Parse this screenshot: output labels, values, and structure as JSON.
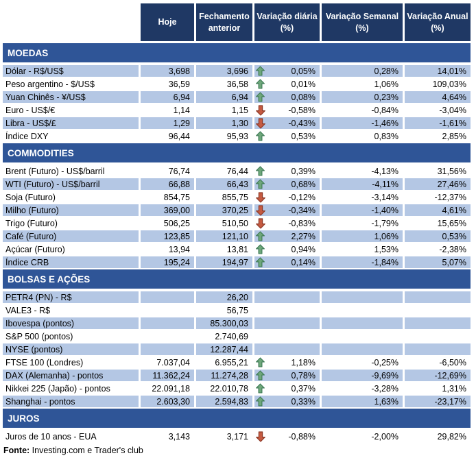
{
  "colors": {
    "header_bg": "#1F3864",
    "section_bg": "#2F5597",
    "row_shade": "#B4C7E4",
    "row_plain": "#FFFFFF",
    "up_arrow_fill": "#6FA77B",
    "up_arrow_border": "#3D7A55",
    "down_arrow_fill": "#C55A41",
    "down_arrow_border": "#8E3A28",
    "text": "#000000"
  },
  "chart_data": {
    "type": "table",
    "columns": [
      "",
      "Hoje",
      "Fechamento anterior",
      "Variação diária (%)",
      "Variação Semanal (%)",
      "Variação Anual (%)"
    ],
    "sections": [
      {
        "title": "MOEDAS",
        "rows": [
          {
            "label": "Dólar - R$/US$",
            "hoje": "3,698",
            "fechamento": "3,696",
            "trend": "up",
            "diaria": "0,05%",
            "semanal": "0,28%",
            "anual": "14,01%",
            "shaded": true
          },
          {
            "label": "Peso argentino - $/US$",
            "hoje": "36,59",
            "fechamento": "36,58",
            "trend": "up",
            "diaria": "0,01%",
            "semanal": "1,06%",
            "anual": "109,03%",
            "shaded": false
          },
          {
            "label": "Yuan Chinês - ¥/US$",
            "hoje": "6,94",
            "fechamento": "6,94",
            "trend": "up",
            "diaria": "0,08%",
            "semanal": "0,23%",
            "anual": "4,64%",
            "shaded": true
          },
          {
            "label": "Euro - US$/€",
            "hoje": "1,14",
            "fechamento": "1,15",
            "trend": "down",
            "diaria": "-0,58%",
            "semanal": "-0,84%",
            "anual": "-3,04%",
            "shaded": false
          },
          {
            "label": "Libra - US$/£",
            "hoje": "1,29",
            "fechamento": "1,30",
            "trend": "down",
            "diaria": "-0,43%",
            "semanal": "-1,46%",
            "anual": "-1,61%",
            "shaded": true
          },
          {
            "label": "Índice DXY",
            "hoje": "96,44",
            "fechamento": "95,93",
            "trend": "up",
            "diaria": "0,53%",
            "semanal": "0,83%",
            "anual": "2,85%",
            "shaded": false
          }
        ]
      },
      {
        "title": "COMMODITIES",
        "rows": [
          {
            "label": "Brent (Futuro) - US$/barril",
            "hoje": "76,74",
            "fechamento": "76,44",
            "trend": "up",
            "diaria": "0,39%",
            "semanal": "-4,13%",
            "anual": "31,56%",
            "shaded": false
          },
          {
            "label": "WTI (Futuro) - US$/barril",
            "hoje": "66,88",
            "fechamento": "66,43",
            "trend": "up",
            "diaria": "0,68%",
            "semanal": "-4,11%",
            "anual": "27,46%",
            "shaded": true
          },
          {
            "label": "Soja (Futuro)",
            "hoje": "854,75",
            "fechamento": "855,75",
            "trend": "down",
            "diaria": "-0,12%",
            "semanal": "-3,14%",
            "anual": "-12,37%",
            "shaded": false
          },
          {
            "label": "Milho (Futuro)",
            "hoje": "369,00",
            "fechamento": "370,25",
            "trend": "down",
            "diaria": "-0,34%",
            "semanal": "-1,40%",
            "anual": "4,61%",
            "shaded": true
          },
          {
            "label": "Trigo (Futuro)",
            "hoje": "506,25",
            "fechamento": "510,50",
            "trend": "down",
            "diaria": "-0,83%",
            "semanal": "-1,79%",
            "anual": "15,65%",
            "shaded": false
          },
          {
            "label": "Café (Futuro)",
            "hoje": "123,85",
            "fechamento": "121,10",
            "trend": "up",
            "diaria": "2,27%",
            "semanal": "1,06%",
            "anual": "0,53%",
            "shaded": true
          },
          {
            "label": "Açúcar (Futuro)",
            "hoje": "13,94",
            "fechamento": "13,81",
            "trend": "up",
            "diaria": "0,94%",
            "semanal": "1,53%",
            "anual": "-2,38%",
            "shaded": false
          },
          {
            "label": "Índice CRB",
            "hoje": "195,24",
            "fechamento": "194,97",
            "trend": "up",
            "diaria": "0,14%",
            "semanal": "-1,84%",
            "anual": "5,07%",
            "shaded": true
          }
        ]
      },
      {
        "title": "BOLSAS E AÇÕES",
        "rows": [
          {
            "label": "PETR4 (PN) - R$",
            "hoje": "",
            "fechamento": "26,20",
            "trend": "none",
            "diaria": "",
            "semanal": "",
            "anual": "",
            "shaded": true
          },
          {
            "label": "VALE3 - R$",
            "hoje": "",
            "fechamento": "56,75",
            "trend": "none",
            "diaria": "",
            "semanal": "",
            "anual": "",
            "shaded": false
          },
          {
            "label": "Ibovespa (pontos)",
            "hoje": "",
            "fechamento": "85.300,03",
            "trend": "none",
            "diaria": "",
            "semanal": "",
            "anual": "",
            "shaded": true
          },
          {
            "label": "S&P 500 (pontos)",
            "hoje": "",
            "fechamento": "2.740,69",
            "trend": "none",
            "diaria": "",
            "semanal": "",
            "anual": "",
            "shaded": false
          },
          {
            "label": "NYSE (pontos)",
            "hoje": "",
            "fechamento": "12.287,44",
            "trend": "none",
            "diaria": "",
            "semanal": "",
            "anual": "",
            "shaded": true
          },
          {
            "label": "FTSE 100 (Londres)",
            "hoje": "7.037,04",
            "fechamento": "6.955,21",
            "trend": "up",
            "diaria": "1,18%",
            "semanal": "-0,25%",
            "anual": "-6,50%",
            "shaded": false
          },
          {
            "label": "DAX (Alemanha) - pontos",
            "hoje": "11.362,24",
            "fechamento": "11.274,28",
            "trend": "up",
            "diaria": "0,78%",
            "semanal": "-9,69%",
            "anual": "-12,69%",
            "shaded": true
          },
          {
            "label": "Nikkei 225 (Japão) - pontos",
            "hoje": "22.091,18",
            "fechamento": "22.010,78",
            "trend": "up",
            "diaria": "0,37%",
            "semanal": "-3,28%",
            "anual": "1,31%",
            "shaded": false
          },
          {
            "label": "Shanghai - pontos",
            "hoje": "2.603,30",
            "fechamento": "2.594,83",
            "trend": "up",
            "diaria": "0,33%",
            "semanal": "1,63%",
            "anual": "-23,17%",
            "shaded": true
          }
        ]
      },
      {
        "title": "JUROS",
        "rows": [
          {
            "label": "Juros de 10 anos - EUA",
            "hoje": "3,143",
            "fechamento": "3,171",
            "trend": "down",
            "diaria": "-0,88%",
            "semanal": "-2,00%",
            "anual": "29,82%",
            "shaded": false
          }
        ]
      }
    ],
    "source_bold": "Fonte:",
    "source_text": " Investing.com e Trader's club"
  }
}
